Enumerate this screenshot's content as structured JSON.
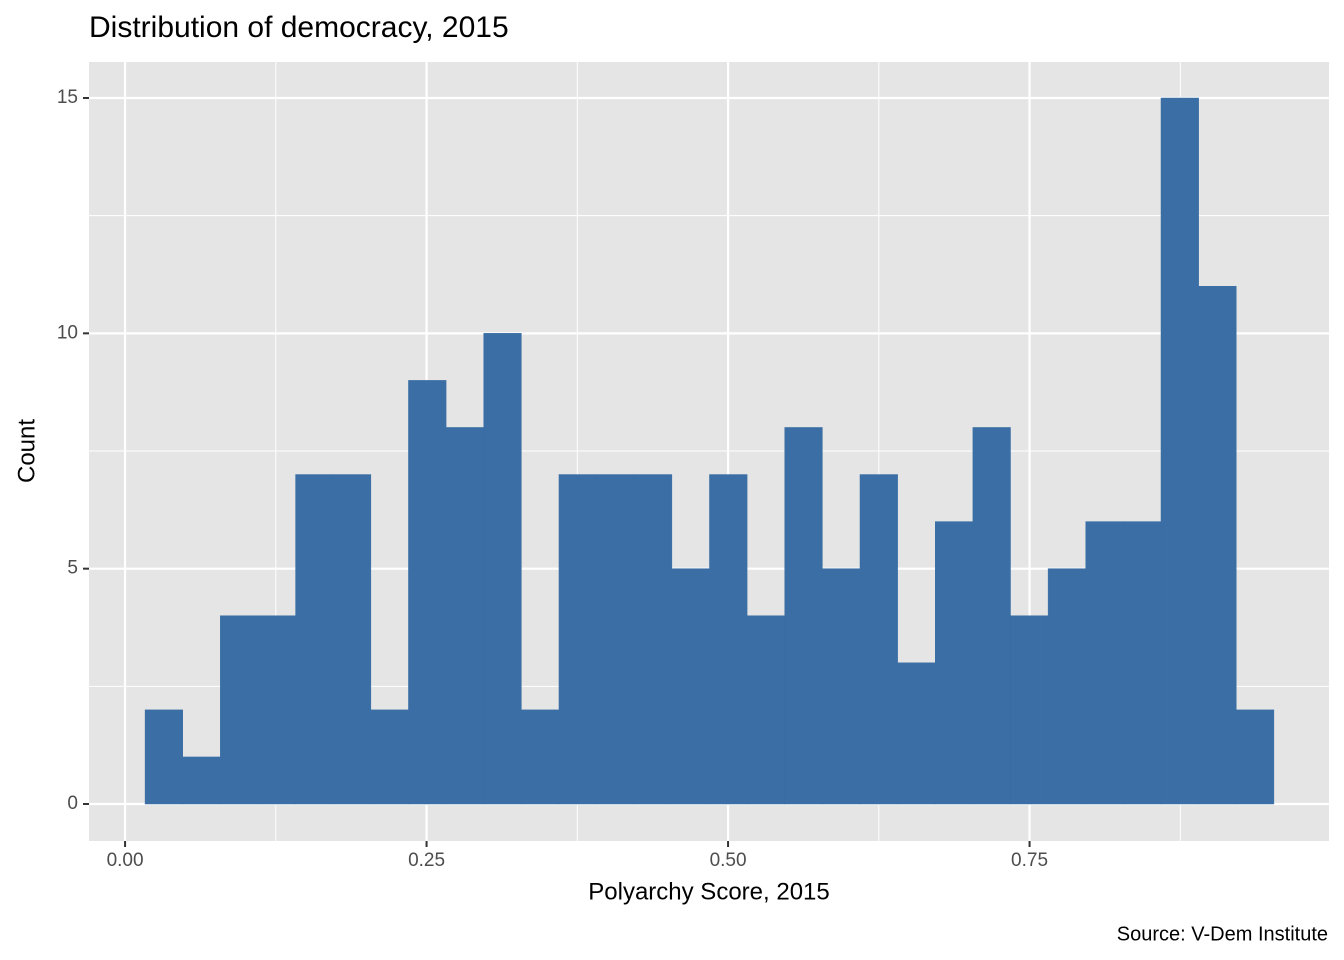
{
  "chart_data": {
    "type": "histogram",
    "title": "Distribution of democracy, 2015",
    "x_label": "Polyarchy Score, 2015",
    "y_label": "Count",
    "caption": "Source: V-Dem Institute",
    "bins": [
      0.0166,
      0.0478,
      0.079,
      0.1102,
      0.1414,
      0.1726,
      0.2038,
      0.235,
      0.2662,
      0.2974,
      0.3286,
      0.3598,
      0.391,
      0.4222,
      0.4534,
      0.4846,
      0.5158,
      0.547,
      0.5782,
      0.6094,
      0.6406,
      0.6718,
      0.703,
      0.7342,
      0.7654,
      0.7966,
      0.8278,
      0.859,
      0.8902,
      0.9214,
      0.9526
    ],
    "values": [
      2,
      1,
      4,
      4,
      7,
      7,
      2,
      9,
      8,
      10,
      2,
      7,
      7,
      7,
      5,
      7,
      4,
      8,
      5,
      7,
      3,
      6,
      8,
      4,
      5,
      6,
      6,
      15,
      11,
      2
    ],
    "color": "#3a6ea5",
    "xlim": [
      -0.0299,
      0.9983
    ],
    "ylim": [
      -0.786,
      15.765
    ],
    "xticks": [
      {
        "value": 0,
        "label": "0.00"
      },
      {
        "value": 0.25,
        "label": "0.25"
      },
      {
        "value": 0.5,
        "label": "0.50"
      },
      {
        "value": 0.75,
        "label": "0.75"
      }
    ],
    "yticks": [
      0,
      5,
      10,
      15
    ],
    "grid": true
  }
}
